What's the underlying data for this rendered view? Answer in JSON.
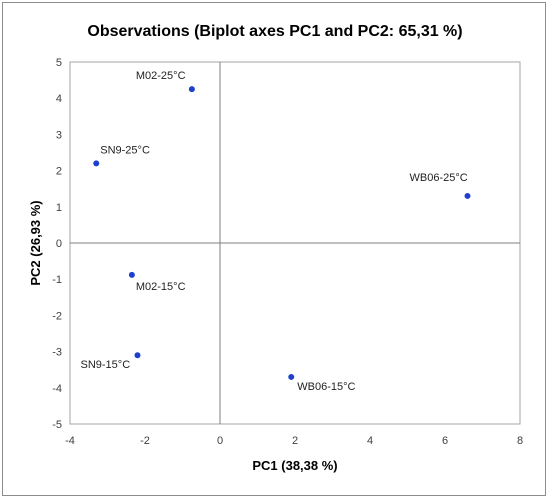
{
  "chart_data": {
    "type": "scatter",
    "title": "Observations (Biplot axes PC1 and PC2: 65,31 %)",
    "xlabel": "PC1 (38,38 %)",
    "ylabel": "PC2 (26,93 %)",
    "xlim": [
      -4,
      8
    ],
    "ylim": [
      -5,
      5
    ],
    "xticks": [
      -4,
      -2,
      0,
      2,
      4,
      6,
      8
    ],
    "yticks": [
      -5,
      -4,
      -3,
      -2,
      -1,
      0,
      1,
      2,
      3,
      4,
      5
    ],
    "grid": false,
    "marker_color": "#1f3fcf",
    "points": [
      {
        "label": "M02-25°C",
        "x": -0.75,
        "y": 4.25
      },
      {
        "label": "SN9-25°C",
        "x": -3.3,
        "y": 2.2
      },
      {
        "label": "WB06-25°C",
        "x": 6.6,
        "y": 1.3
      },
      {
        "label": "M02-15°C",
        "x": -2.35,
        "y": -0.88
      },
      {
        "label": "SN9-15°C",
        "x": -2.2,
        "y": -3.1
      },
      {
        "label": "WB06-15°C",
        "x": 1.9,
        "y": -3.7
      }
    ]
  }
}
